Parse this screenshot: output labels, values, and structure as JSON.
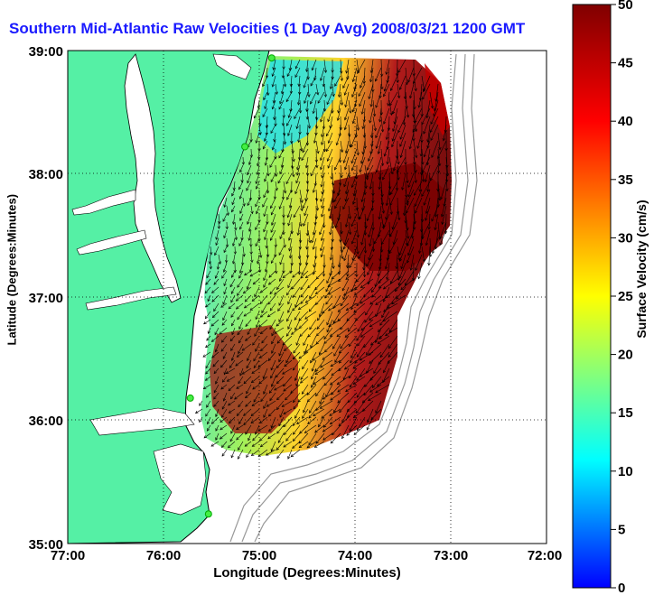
{
  "title": "Southern Mid-Atlantic Raw Velocities (1 Day Avg) 2008/03/21 1200 GMT",
  "xlabel": "Longitude (Degrees:Minutes)",
  "ylabel": "Latitude (Degrees:Minutes)",
  "colorbar": {
    "label": "Surface Velocity (cm/s)",
    "ticks": [
      "0",
      "5",
      "10",
      "15",
      "20",
      "25",
      "30",
      "35",
      "40",
      "45",
      "50"
    ],
    "range": [
      0,
      50
    ],
    "colors": [
      "#0000ff",
      "#00ffff",
      "#ffff00",
      "#ff0000",
      "#800000"
    ]
  },
  "axes": {
    "x_ticks": [
      "77:00",
      "76:00",
      "75:00",
      "74:00",
      "73:00",
      "72:00"
    ],
    "y_ticks": [
      "39:00",
      "38:00",
      "37:00",
      "36:00",
      "35:00"
    ],
    "x_range_deg": [
      -77,
      -72
    ],
    "y_range_deg": [
      35,
      39
    ],
    "grid": true
  },
  "colors": {
    "land": "#55f0a5",
    "water": "#ffffff",
    "coast": "#000000",
    "bathymetry": "#999999",
    "station": "#44ee44"
  },
  "stations": [
    {
      "lon": -74.87,
      "lat": 38.94
    },
    {
      "lon": -75.15,
      "lat": 38.22
    },
    {
      "lon": -75.72,
      "lat": 36.18
    },
    {
      "lon": -75.53,
      "lat": 35.24
    }
  ]
}
